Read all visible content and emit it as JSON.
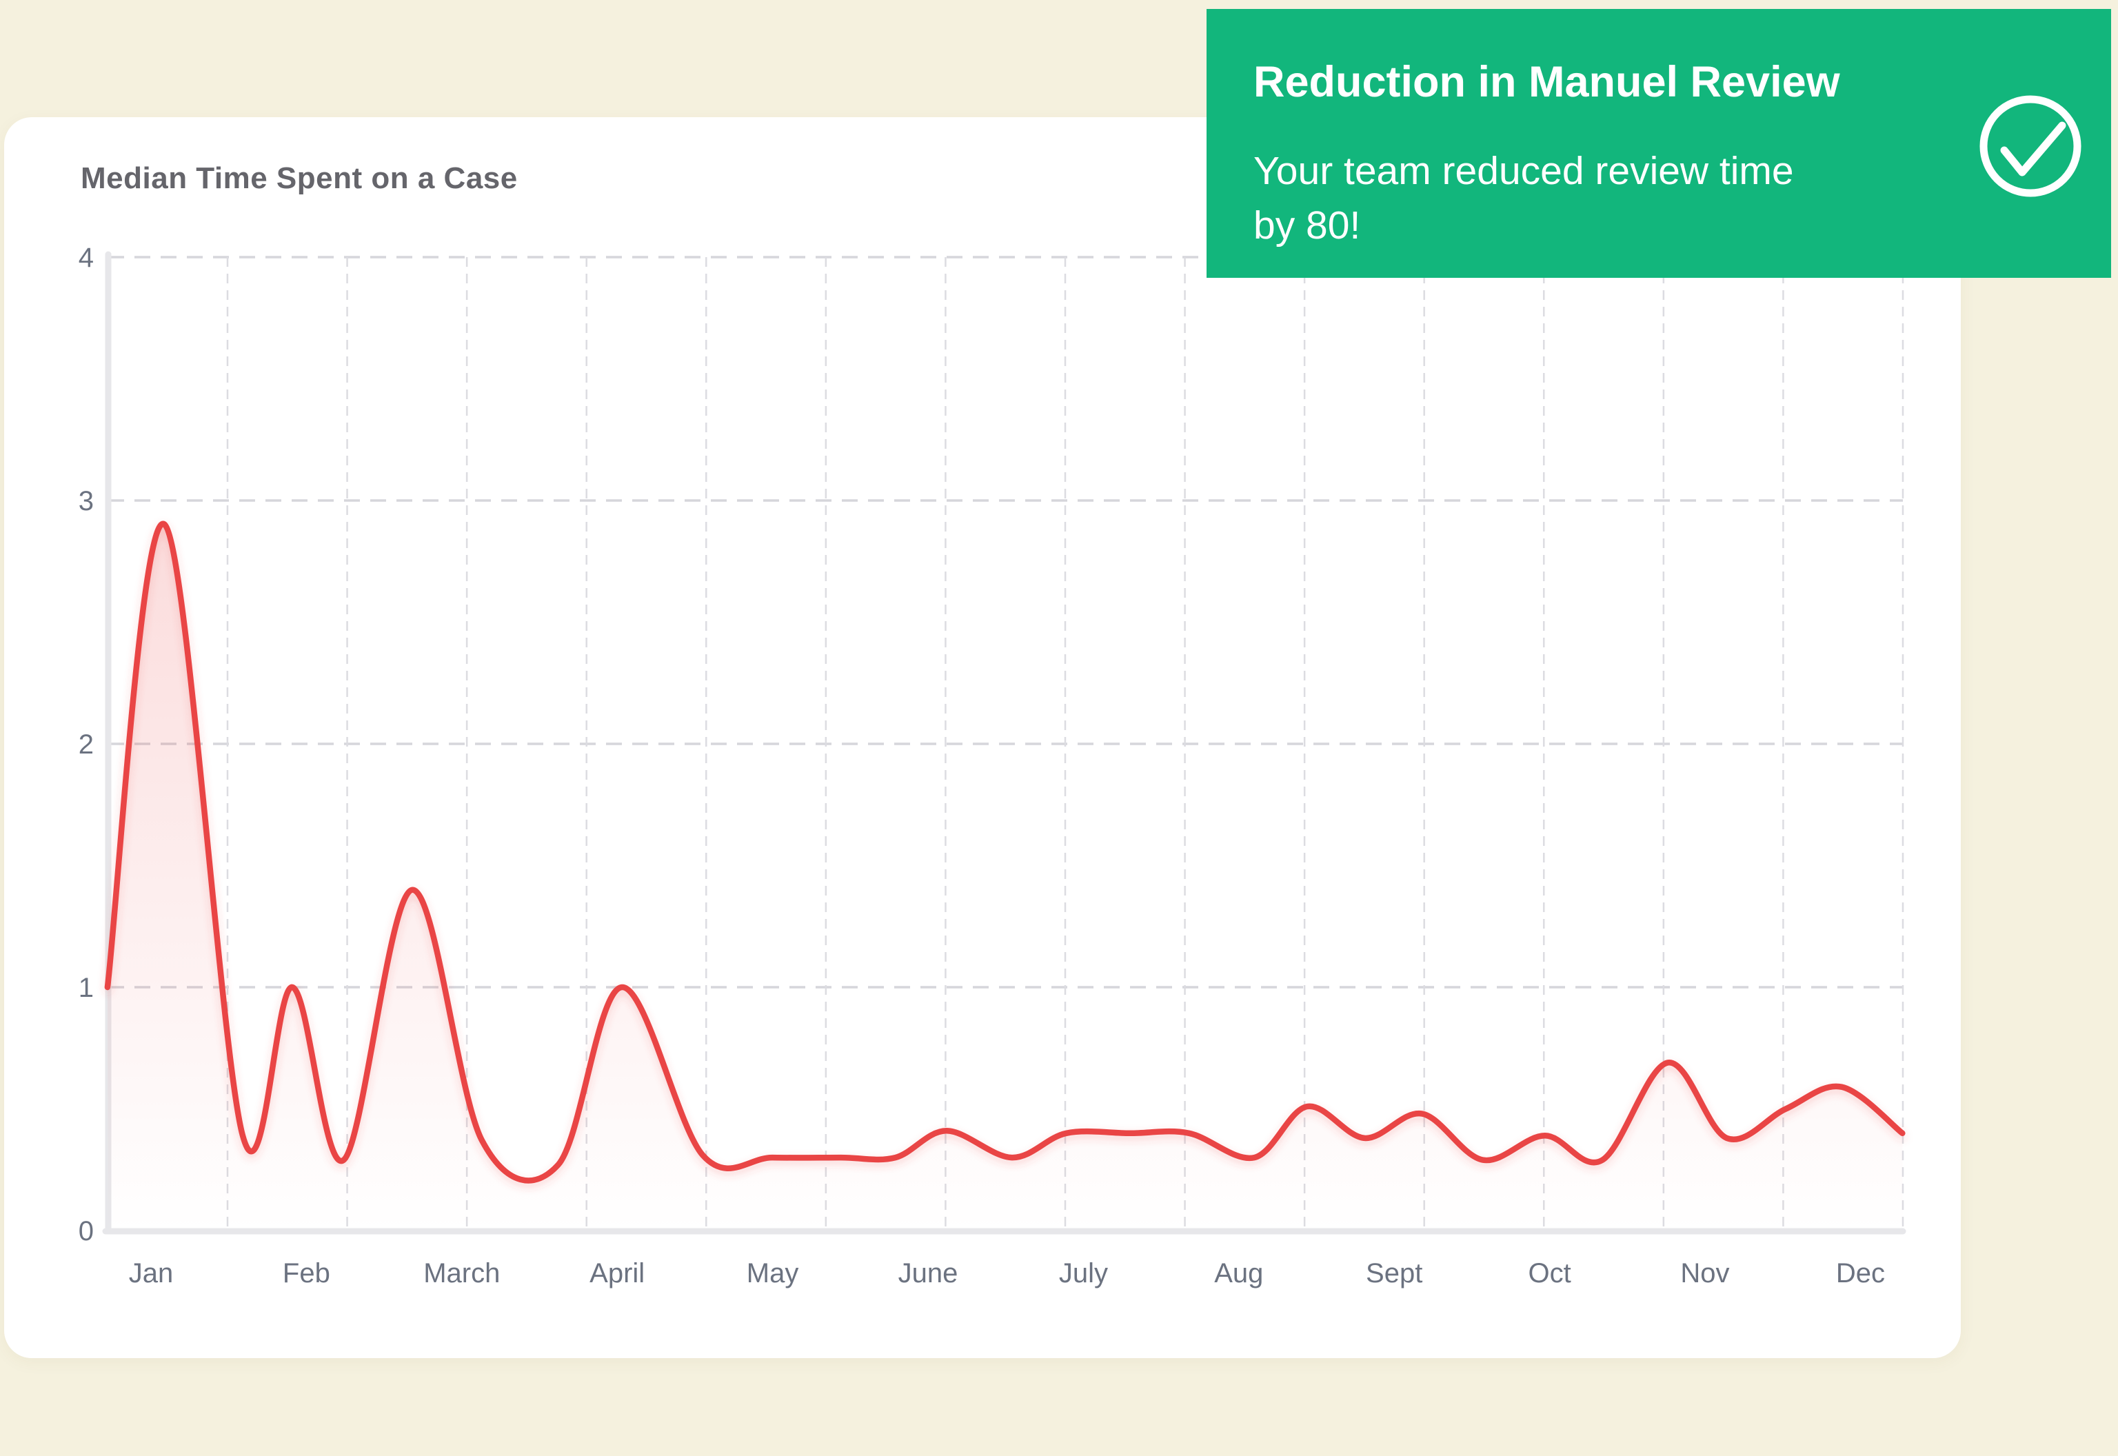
{
  "colors": {
    "background": "#f5f1de",
    "card": "#ffffff",
    "accent_red": "#e94444",
    "toast_green": "#12b67c",
    "hgrid": "#d6d6db",
    "vgrid": "#dcdce1",
    "axis_line": "#e7e7ea",
    "title_text": "#65656b",
    "axis_text": "#6b7280"
  },
  "card": {
    "title": "Median Time Spent on a Case"
  },
  "toast": {
    "title": "Reduction in Manuel Review",
    "message": "Your team reduced review time by 80!",
    "message_lines": [
      "Your team reduced review time",
      "by 80!"
    ],
    "icon": "check-circle-icon"
  },
  "chart_data": {
    "type": "area",
    "title": "Median Time Spent on a Case",
    "categories": [
      "Jan",
      "Feb",
      "March",
      "April",
      "May",
      "June",
      "July",
      "Aug",
      "Sept",
      "Oct",
      "Nov",
      "Dec"
    ],
    "monthly_values": [
      2.9,
      1.0,
      1.4,
      1.0,
      0.3,
      0.4,
      0.4,
      0.3,
      0.5,
      0.4,
      0.7,
      0.6
    ],
    "y_ticks": [
      0,
      1,
      2,
      3,
      4
    ],
    "ylim": [
      0,
      4
    ],
    "xlabel": "",
    "ylabel": "",
    "grid": "dashed",
    "legend": "none",
    "line_color": "#e94444",
    "curve_points": [
      [
        -0.28,
        1.0
      ],
      [
        0.09,
        2.9
      ],
      [
        0.59,
        0.39
      ],
      [
        0.91,
        1.0
      ],
      [
        1.24,
        0.29
      ],
      [
        1.68,
        1.4
      ],
      [
        2.13,
        0.37
      ],
      [
        2.62,
        0.27
      ],
      [
        3.03,
        1.0
      ],
      [
        3.55,
        0.31
      ],
      [
        4.0,
        0.3
      ],
      [
        4.44,
        0.3
      ],
      [
        4.79,
        0.3
      ],
      [
        5.12,
        0.41
      ],
      [
        5.54,
        0.3
      ],
      [
        5.89,
        0.4
      ],
      [
        6.3,
        0.4
      ],
      [
        6.68,
        0.4
      ],
      [
        7.1,
        0.3
      ],
      [
        7.44,
        0.51
      ],
      [
        7.81,
        0.38
      ],
      [
        8.18,
        0.48
      ],
      [
        8.57,
        0.29
      ],
      [
        8.97,
        0.39
      ],
      [
        9.34,
        0.29
      ],
      [
        9.76,
        0.69
      ],
      [
        10.14,
        0.38
      ],
      [
        10.52,
        0.5
      ],
      [
        10.88,
        0.59
      ],
      [
        11.27,
        0.4
      ]
    ]
  }
}
